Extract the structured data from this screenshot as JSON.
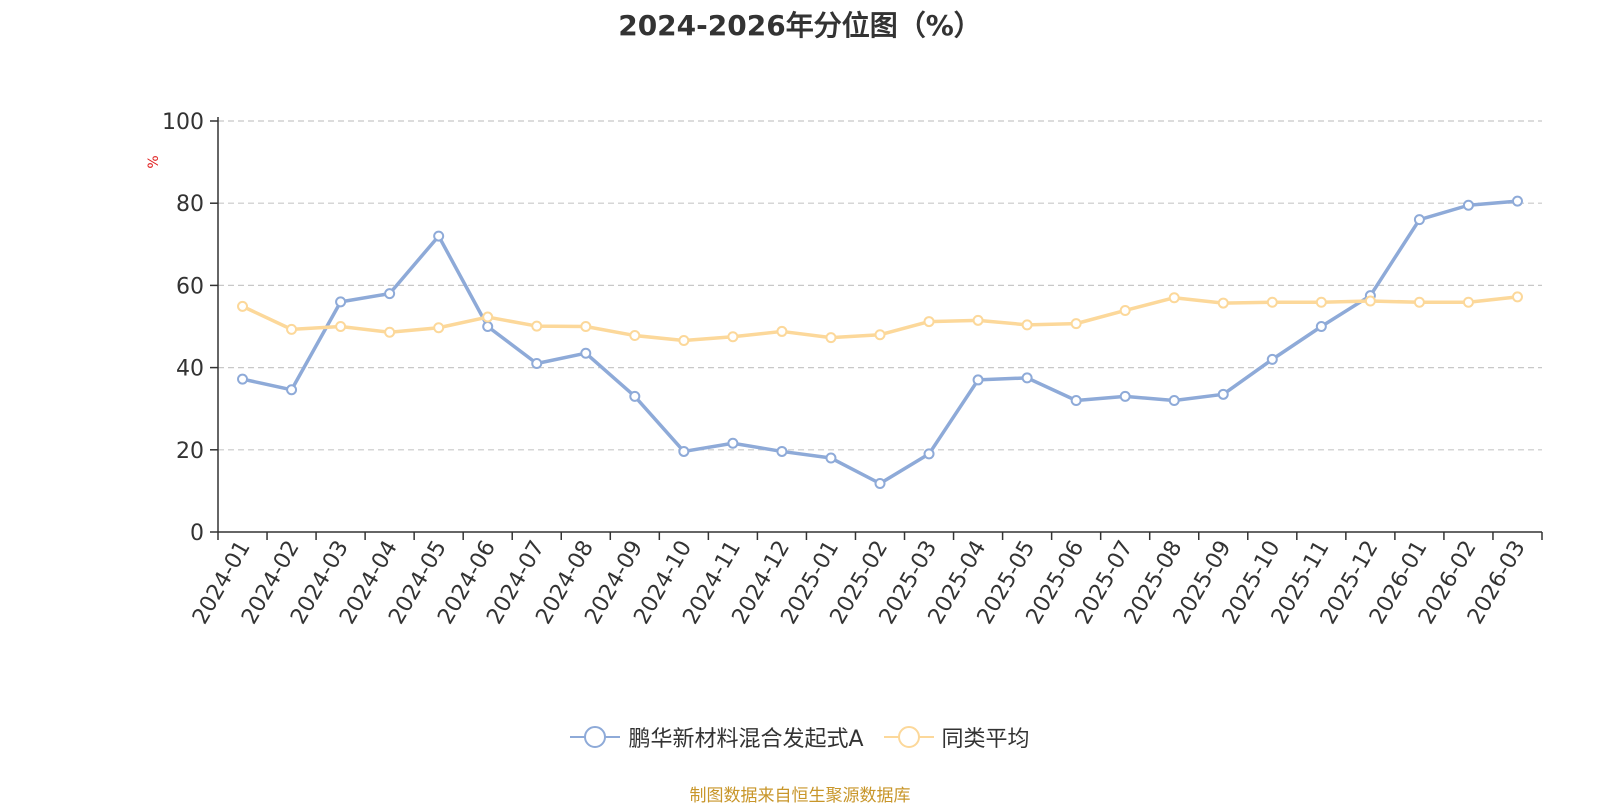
{
  "chart_data": {
    "type": "line",
    "title": "2024-2026年分位图（%）",
    "ylabel": "%",
    "xlabel": "",
    "ylim": [
      0,
      100
    ],
    "yticks": [
      0,
      20,
      40,
      60,
      80,
      100
    ],
    "grid": true,
    "legend_position": "bottom",
    "categories": [
      "2024-01",
      "2024-02",
      "2024-03",
      "2024-04",
      "2024-05",
      "2024-06",
      "2024-07",
      "2024-08",
      "2024-09",
      "2024-10",
      "2024-11",
      "2024-12",
      "2025-01",
      "2025-02",
      "2025-03",
      "2025-04",
      "2025-05",
      "2025-06",
      "2025-07",
      "2025-08",
      "2025-09",
      "2025-10",
      "2025-11",
      "2025-12",
      "2026-01",
      "2026-02",
      "2026-03"
    ],
    "series": [
      {
        "name": "鹏华新材料混合发起式A",
        "color": "#8eaad8",
        "values": [
          37.2,
          34.6,
          56.0,
          58.0,
          72.0,
          50.0,
          41.0,
          43.5,
          33.0,
          19.6,
          21.6,
          19.6,
          18.0,
          11.8,
          19.0,
          37.0,
          37.5,
          32.0,
          33.0,
          32.0,
          33.5,
          42.0,
          50.0,
          57.5,
          76.0,
          79.5,
          80.5
        ]
      },
      {
        "name": "同类平均",
        "color": "#fcd89a",
        "values": [
          54.9,
          49.3,
          50.0,
          48.6,
          49.7,
          52.3,
          50.1,
          50.0,
          47.8,
          46.6,
          47.5,
          48.8,
          47.3,
          48.0,
          51.2,
          51.5,
          50.4,
          50.7,
          53.9,
          57.0,
          55.7,
          55.9,
          55.9,
          56.2,
          55.9,
          55.9,
          57.2
        ]
      }
    ]
  },
  "source_note": "制图数据来自恒生聚源数据库"
}
